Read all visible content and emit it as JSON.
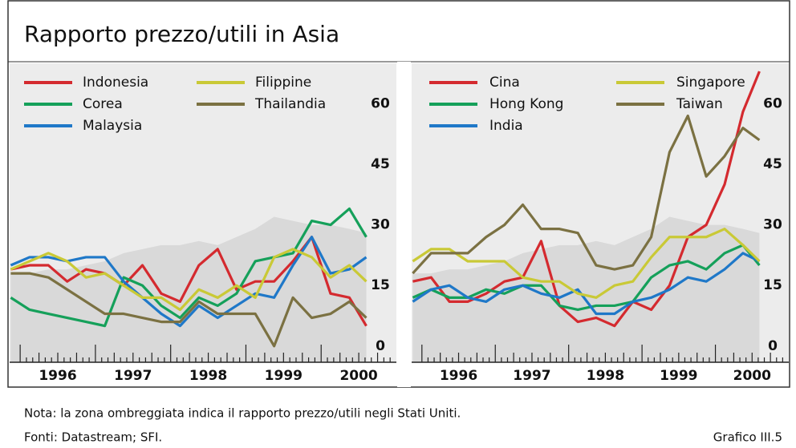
{
  "title": "Rapporto prezzo/utili in Asia",
  "note": "Nota: la zona ombreggiata indica il rapporto prezzo/utili negli Stati Uniti.",
  "sources": "Fonti: Datastream; SFI.",
  "figure_label": "Grafico III.5",
  "chart_data": [
    {
      "type": "line",
      "x": [
        1995.875,
        1996.125,
        1996.375,
        1996.625,
        1996.875,
        1997.125,
        1997.375,
        1997.625,
        1997.875,
        1998.125,
        1998.375,
        1998.625,
        1998.875,
        1999.125,
        1999.375,
        1999.625,
        1999.875,
        2000.125,
        2000.375,
        2000.6
      ],
      "xlim": [
        1995.86,
        2001.0
      ],
      "xticks": [
        {
          "value": 1996.5,
          "label": "1996"
        },
        {
          "value": 1997.5,
          "label": "1997"
        },
        {
          "value": 1998.5,
          "label": "1998"
        },
        {
          "value": 1999.5,
          "label": "1999"
        },
        {
          "value": 2000.5,
          "label": "2000"
        }
      ],
      "ylim": [
        -4,
        70
      ],
      "yticks": [
        0,
        15,
        30,
        45,
        60
      ],
      "shade": {
        "color": "#d9d9d9",
        "values": [
          18,
          18,
          19,
          19,
          20,
          21,
          23,
          24,
          25,
          25,
          26,
          25,
          27,
          29,
          32,
          31,
          30,
          30,
          29,
          28
        ]
      },
      "series": [
        {
          "name": "Indonesia",
          "color": "#d42a2f",
          "values": [
            19,
            20,
            20,
            16,
            19,
            18,
            15,
            20,
            13,
            11,
            20,
            24,
            14,
            16,
            16,
            21,
            27,
            13,
            12,
            5
          ]
        },
        {
          "name": "Corea",
          "color": "#15a05a",
          "values": [
            12,
            9,
            8,
            7,
            6,
            5,
            17,
            15,
            10,
            7,
            12,
            10,
            13,
            21,
            22,
            23,
            31,
            30,
            34,
            27
          ]
        },
        {
          "name": "Malaysia",
          "color": "#1f78c8",
          "values": [
            20,
            22,
            22,
            21,
            22,
            22,
            16,
            12,
            8,
            5,
            10,
            7,
            10,
            13,
            12,
            20,
            27,
            18,
            19,
            22
          ]
        },
        {
          "name": "Filippine",
          "color": "#c9c936",
          "values": [
            19,
            21,
            23,
            21,
            17,
            18,
            15,
            12,
            12,
            9,
            14,
            12,
            15,
            12,
            22,
            24,
            22,
            17,
            20,
            16
          ]
        },
        {
          "name": "Thailandia",
          "color": "#7b7142",
          "values": [
            18,
            18,
            17,
            14,
            11,
            8,
            8,
            7,
            6,
            6,
            11,
            8,
            8,
            8,
            0,
            12,
            7,
            8,
            11,
            7
          ]
        }
      ]
    },
    {
      "type": "line",
      "x": [
        1995.875,
        1996.125,
        1996.375,
        1996.625,
        1996.875,
        1997.125,
        1997.375,
        1997.625,
        1997.875,
        1998.125,
        1998.375,
        1998.625,
        1998.875,
        1999.125,
        1999.375,
        1999.625,
        1999.875,
        2000.125,
        2000.375,
        2000.6
      ],
      "xlim": [
        1995.86,
        2001.0
      ],
      "xticks": [
        {
          "value": 1996.5,
          "label": "1996"
        },
        {
          "value": 1997.5,
          "label": "1997"
        },
        {
          "value": 1998.5,
          "label": "1998"
        },
        {
          "value": 1999.5,
          "label": "1999"
        },
        {
          "value": 2000.5,
          "label": "2000"
        }
      ],
      "ylim": [
        -4,
        70
      ],
      "yticks": [
        0,
        15,
        30,
        45,
        60
      ],
      "shade": {
        "color": "#d9d9d9",
        "values": [
          18,
          18,
          19,
          19,
          20,
          21,
          23,
          24,
          25,
          25,
          26,
          25,
          27,
          29,
          32,
          31,
          30,
          30,
          29,
          28
        ]
      },
      "series": [
        {
          "name": "Cina",
          "color": "#d42a2f",
          "values": [
            16,
            17,
            11,
            11,
            13,
            16,
            17,
            26,
            10,
            6,
            7,
            5,
            11,
            9,
            15,
            27,
            30,
            40,
            58,
            68
          ]
        },
        {
          "name": "Hong Kong",
          "color": "#15a05a",
          "values": [
            12,
            14,
            12,
            12,
            14,
            13,
            15,
            15,
            10,
            9,
            10,
            10,
            11,
            17,
            20,
            21,
            19,
            23,
            25,
            20
          ]
        },
        {
          "name": "India",
          "color": "#1f78c8",
          "values": [
            11,
            14,
            15,
            12,
            11,
            14,
            15,
            13,
            12,
            14,
            8,
            8,
            11,
            12,
            14,
            17,
            16,
            19,
            23,
            21
          ]
        },
        {
          "name": "Singapore",
          "color": "#c9c936",
          "values": [
            21,
            24,
            24,
            21,
            21,
            21,
            17,
            16,
            16,
            13,
            12,
            15,
            16,
            22,
            27,
            27,
            27,
            29,
            25,
            21
          ]
        },
        {
          "name": "Taiwan",
          "color": "#7b7142",
          "values": [
            18,
            23,
            23,
            23,
            27,
            30,
            35,
            29,
            29,
            28,
            20,
            19,
            20,
            27,
            48,
            57,
            42,
            47,
            54,
            51
          ]
        }
      ]
    }
  ]
}
